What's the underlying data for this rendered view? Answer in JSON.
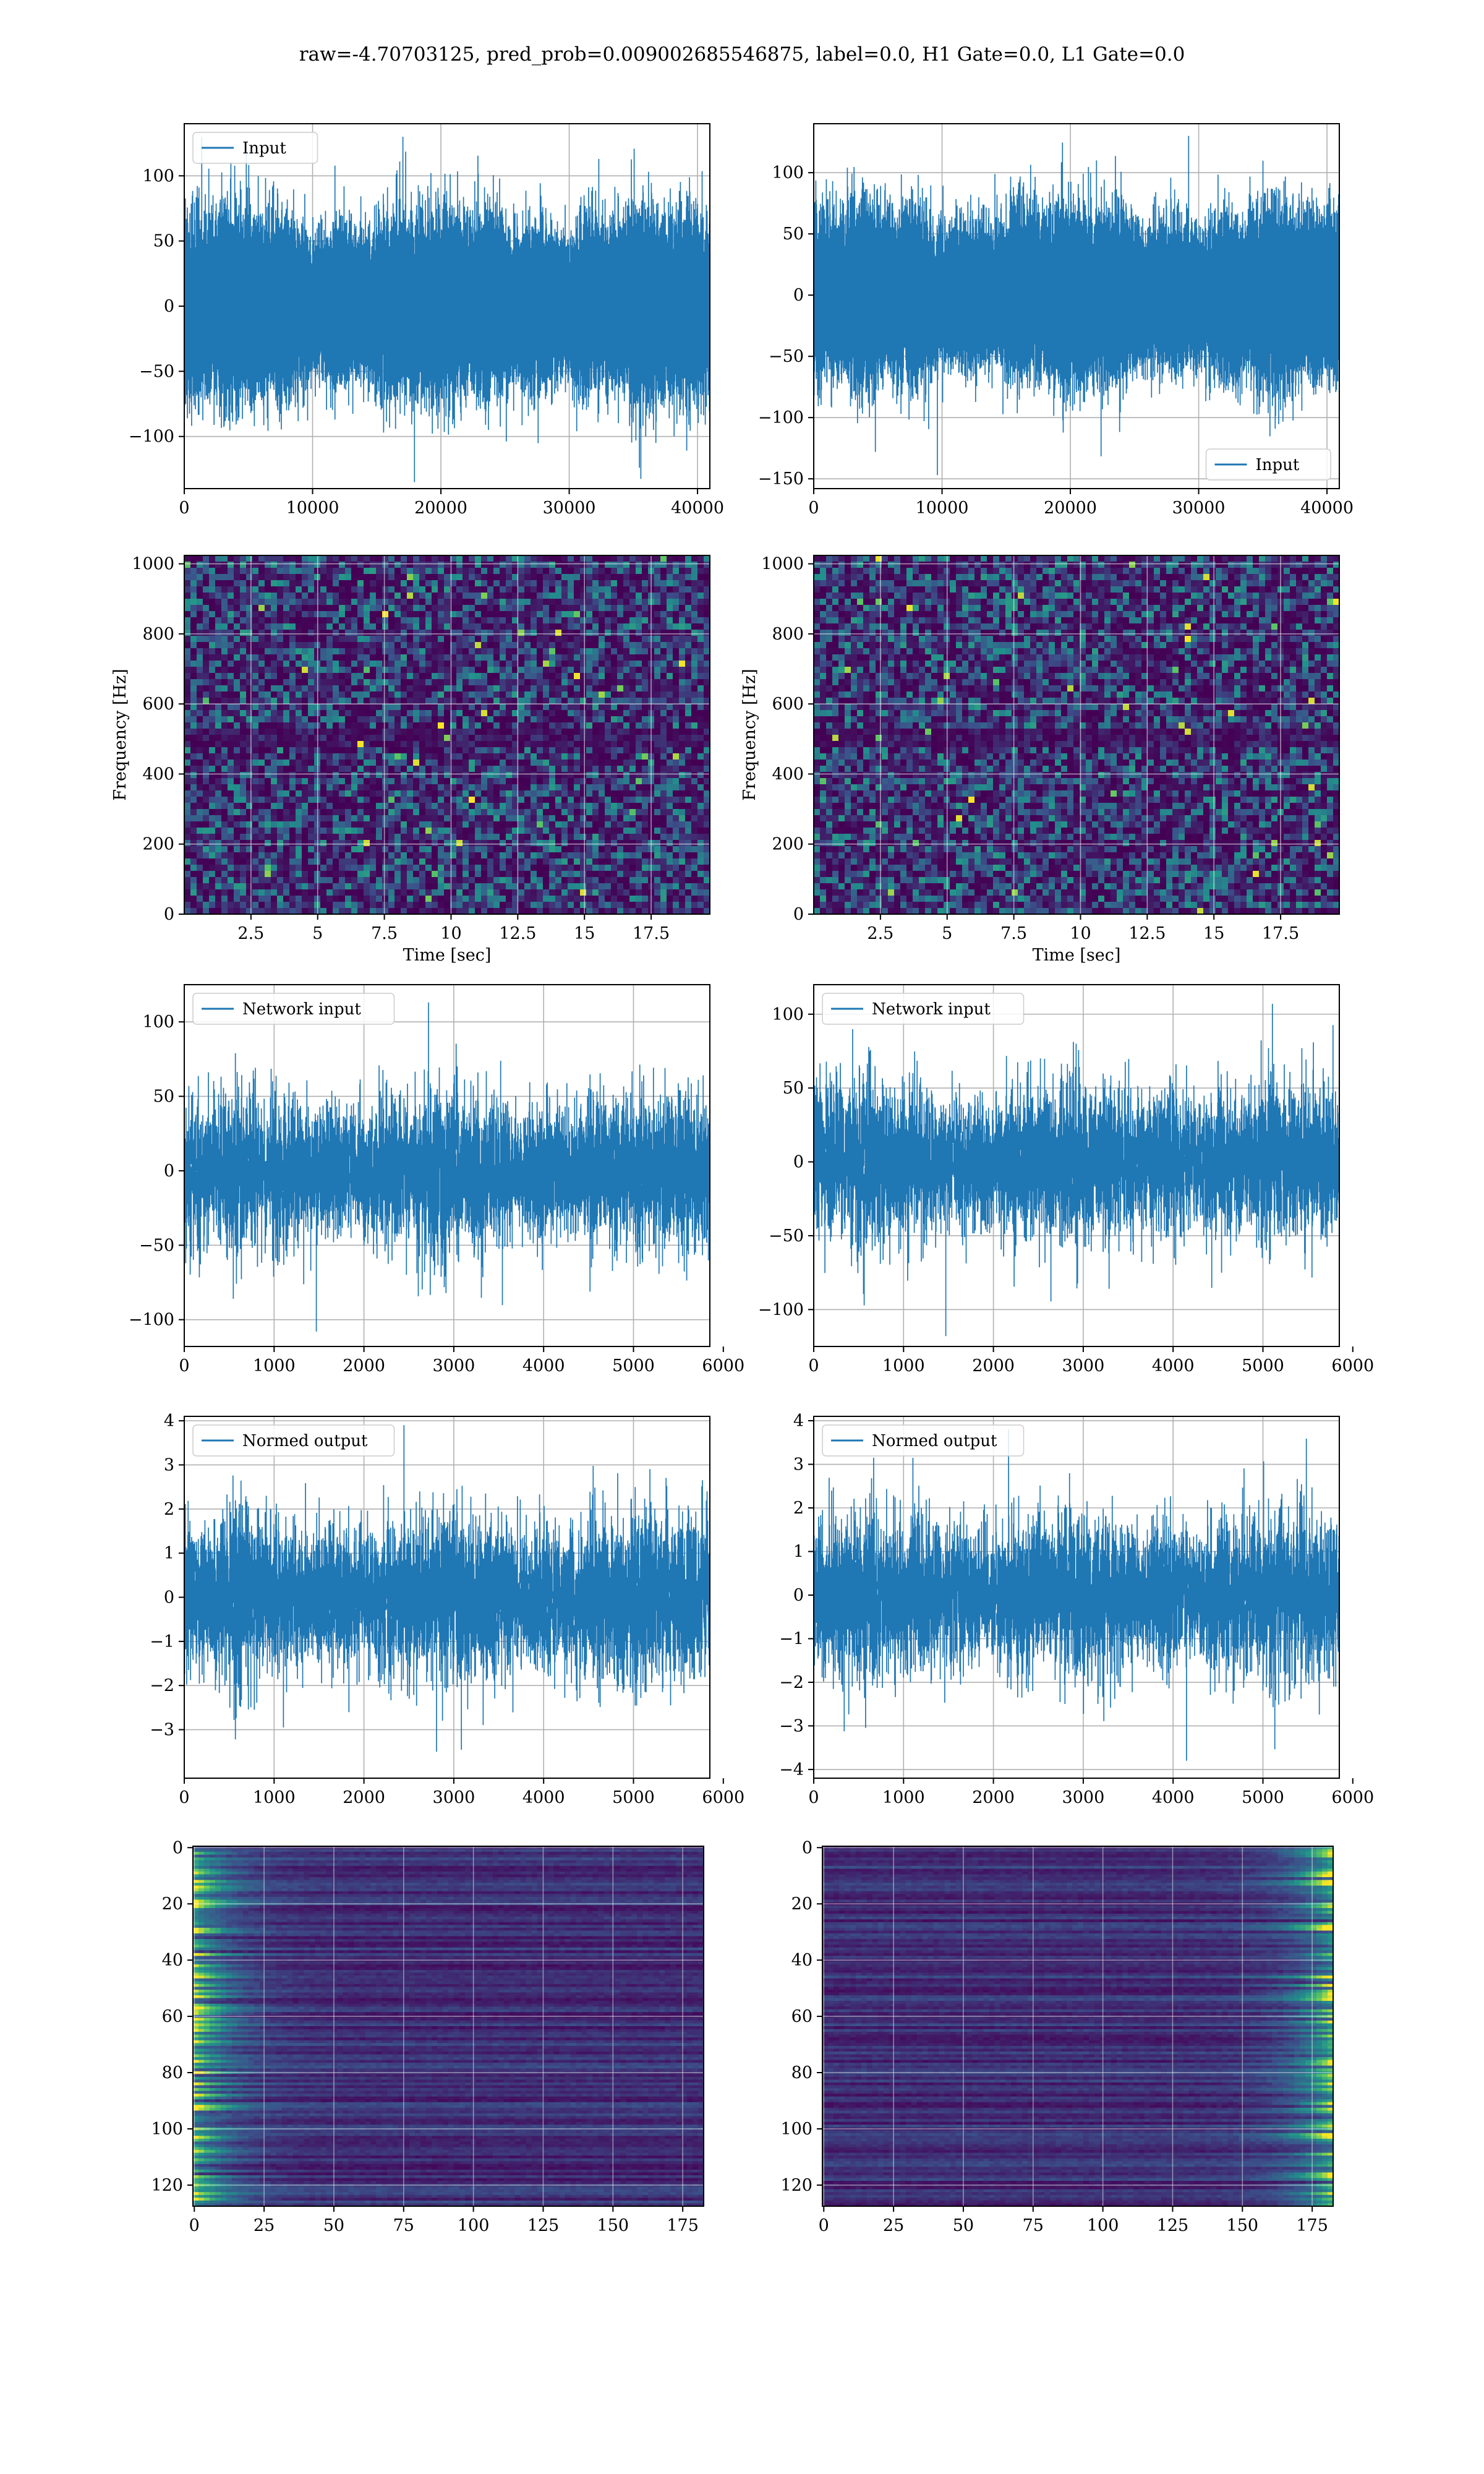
{
  "figure": {
    "title": "raw=-4.70703125, pred_prob=0.009002685546875, label=0.0, H1 Gate=0.0, L1 Gate=0.0"
  },
  "colors": {
    "series": "#1f77b4",
    "grid": "#b0b0b0",
    "spectrogram_low": "#440154",
    "spectrogram_mid": "#2a788e",
    "spectrogram_high": "#fde725"
  },
  "chart_data": [
    {
      "id": "input-h1",
      "type": "line",
      "series_kind": "noise",
      "series": [
        {
          "name": "Input",
          "seed": 11
        }
      ],
      "legend": "upper-left",
      "x": {
        "min": 0,
        "max": 40960,
        "ticks": [
          0,
          10000,
          20000,
          30000,
          40000
        ]
      },
      "y": {
        "min": -140,
        "max": 140,
        "ticks": [
          -100,
          -50,
          0,
          50,
          100
        ]
      },
      "signal": {
        "n": 40960,
        "amplitude": 28,
        "peak": 130,
        "trough": -135
      },
      "grid": true,
      "xlabel": "",
      "ylabel": ""
    },
    {
      "id": "input-l1",
      "type": "line",
      "series_kind": "noise",
      "series": [
        {
          "name": "Input",
          "seed": 23
        }
      ],
      "legend": "lower-right",
      "x": {
        "min": 0,
        "max": 40960,
        "ticks": [
          0,
          10000,
          20000,
          30000,
          40000
        ]
      },
      "y": {
        "min": -158,
        "max": 140,
        "ticks": [
          -150,
          -100,
          -50,
          0,
          50,
          100
        ]
      },
      "signal": {
        "n": 40960,
        "amplitude": 28,
        "peak": 130,
        "trough": -147
      },
      "grid": true,
      "xlabel": "",
      "ylabel": ""
    },
    {
      "id": "spectrogram-h1",
      "type": "heatmap",
      "series_kind": "spectrogram",
      "series": [
        {
          "seed": 31
        }
      ],
      "x": {
        "min": 0,
        "max": 19.7,
        "ticks": [
          2.5,
          5.0,
          7.5,
          10.0,
          12.5,
          15.0,
          17.5
        ]
      },
      "y": {
        "min": 0,
        "max": 1024,
        "ticks": [
          0,
          200,
          400,
          600,
          800,
          1000
        ]
      },
      "grid": true,
      "xlabel": "Time [sec]",
      "ylabel": "Frequency [Hz]"
    },
    {
      "id": "spectrogram-l1",
      "type": "heatmap",
      "series_kind": "spectrogram",
      "series": [
        {
          "seed": 47
        }
      ],
      "x": {
        "min": 0,
        "max": 19.7,
        "ticks": [
          2.5,
          5.0,
          7.5,
          10.0,
          12.5,
          15.0,
          17.5
        ]
      },
      "y": {
        "min": 0,
        "max": 1024,
        "ticks": [
          0,
          200,
          400,
          600,
          800,
          1000
        ]
      },
      "grid": true,
      "xlabel": "Time [sec]",
      "ylabel": "Frequency [Hz]"
    },
    {
      "id": "network-input-h1",
      "type": "line",
      "series_kind": "noise",
      "series": [
        {
          "name": "Network input",
          "seed": 53
        }
      ],
      "legend": "upper-left",
      "x": {
        "min": 0,
        "max": 5850,
        "ticks": [
          0,
          1000,
          2000,
          3000,
          4000,
          5000,
          6000
        ]
      },
      "y": {
        "min": -118,
        "max": 125,
        "ticks": [
          -100,
          -50,
          0,
          50,
          100
        ]
      },
      "signal": {
        "n": 5850,
        "amplitude": 24,
        "peak": 113,
        "trough": -108
      },
      "grid": true,
      "xlabel": "",
      "ylabel": ""
    },
    {
      "id": "network-input-l1",
      "type": "line",
      "series_kind": "noise",
      "series": [
        {
          "name": "Network input",
          "seed": 67
        }
      ],
      "legend": "upper-left",
      "x": {
        "min": 0,
        "max": 5850,
        "ticks": [
          0,
          1000,
          2000,
          3000,
          4000,
          5000,
          6000
        ]
      },
      "y": {
        "min": -125,
        "max": 120,
        "ticks": [
          -100,
          -50,
          0,
          50,
          100
        ]
      },
      "signal": {
        "n": 5850,
        "amplitude": 24,
        "peak": 107,
        "trough": -118
      },
      "grid": true,
      "xlabel": "",
      "ylabel": ""
    },
    {
      "id": "normed-output-h1",
      "type": "line",
      "series_kind": "noise",
      "series": [
        {
          "name": "Normed output",
          "seed": 71
        }
      ],
      "legend": "upper-left",
      "x": {
        "min": 0,
        "max": 5850,
        "ticks": [
          0,
          1000,
          2000,
          3000,
          4000,
          5000,
          6000
        ]
      },
      "y": {
        "min": -4.1,
        "max": 4.1,
        "ticks": [
          -3,
          -2,
          -1,
          0,
          1,
          2,
          3,
          4
        ]
      },
      "signal": {
        "n": 5850,
        "amplitude": 0.85,
        "peak": 3.9,
        "trough": -3.5
      },
      "grid": true,
      "xlabel": "",
      "ylabel": ""
    },
    {
      "id": "normed-output-l1",
      "type": "line",
      "series_kind": "noise",
      "series": [
        {
          "name": "Normed output",
          "seed": 89
        }
      ],
      "legend": "upper-left",
      "x": {
        "min": 0,
        "max": 5850,
        "ticks": [
          0,
          1000,
          2000,
          3000,
          4000,
          5000,
          6000
        ]
      },
      "y": {
        "min": -4.2,
        "max": 4.1,
        "ticks": [
          -4,
          -3,
          -2,
          -1,
          0,
          1,
          2,
          3,
          4
        ]
      },
      "signal": {
        "n": 5850,
        "amplitude": 0.85,
        "peak": 3.8,
        "trough": -3.8
      },
      "grid": true,
      "xlabel": "",
      "ylabel": ""
    },
    {
      "id": "feature-map-h1",
      "type": "heatmap",
      "series_kind": "feature-map",
      "series": [
        {
          "seed": 97,
          "bright_side": "left"
        }
      ],
      "x": {
        "min": -0.5,
        "max": 182.5,
        "ticks": [
          0,
          25,
          50,
          75,
          100,
          125,
          150,
          175
        ]
      },
      "y": {
        "min": -0.5,
        "max": 127.5,
        "inverted": true,
        "ticks": [
          0,
          20,
          40,
          60,
          80,
          100,
          120
        ]
      },
      "grid": true,
      "xlabel": "",
      "ylabel": ""
    },
    {
      "id": "feature-map-l1",
      "type": "heatmap",
      "series_kind": "feature-map",
      "series": [
        {
          "seed": 101,
          "bright_side": "right"
        }
      ],
      "x": {
        "min": -0.5,
        "max": 182.5,
        "ticks": [
          0,
          25,
          50,
          75,
          100,
          125,
          150,
          175
        ]
      },
      "y": {
        "min": -0.5,
        "max": 127.5,
        "inverted": true,
        "ticks": [
          0,
          20,
          40,
          60,
          80,
          100,
          120
        ]
      },
      "grid": true,
      "xlabel": "",
      "ylabel": ""
    }
  ]
}
